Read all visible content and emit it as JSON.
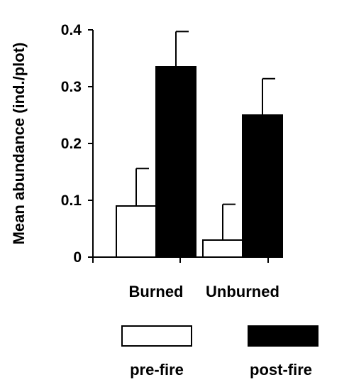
{
  "chart_data": {
    "type": "bar",
    "categories": [
      "Burned",
      "Unburned"
    ],
    "series": [
      {
        "name": "pre-fire",
        "values": [
          0.09,
          0.03
        ],
        "errors": [
          0.066,
          0.063
        ],
        "color": "#ffffff"
      },
      {
        "name": "post-fire",
        "values": [
          0.335,
          0.25
        ],
        "errors": [
          0.062,
          0.064
        ],
        "color": "#000000"
      }
    ],
    "title": "",
    "xlabel": "",
    "ylabel": "Mean abundance (ind./plot)",
    "ylim": [
      0,
      0.4
    ],
    "yticks": [
      "0",
      "0.1",
      "0.2",
      "0.3",
      "0.4"
    ],
    "grid": false,
    "legend_position": "bottom",
    "error_bars": "upper"
  }
}
